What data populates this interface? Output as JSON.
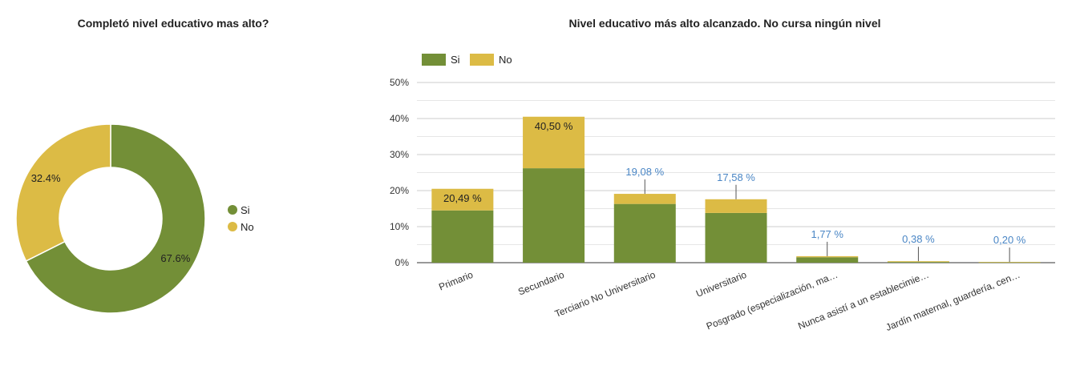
{
  "chart_data": [
    {
      "type": "pie",
      "title": "Completó nivel educativo mas alto?",
      "labels": [
        "Si",
        "No"
      ],
      "values": [
        67.6,
        32.4
      ],
      "value_labels": [
        "67.6%",
        "32.4%"
      ],
      "colors": [
        "#738f37",
        "#dcbb45"
      ],
      "donut": true,
      "legend": "right"
    },
    {
      "type": "bar",
      "stacked": true,
      "title": "Nivel educativo más alto alcanzado. No cursa ningún nivel",
      "categories": [
        "Primario",
        "Secundario",
        "Terciario No Universitario",
        "Universitario",
        "Posgrado (especialización, ma…",
        "Nunca asistí a un establecimie…",
        "Jardín maternal, guardería, cen…"
      ],
      "series": [
        {
          "name": "Si",
          "values": [
            14.5,
            26.2,
            16.3,
            13.8,
            1.5,
            0.2,
            0.1
          ],
          "color": "#738f37"
        },
        {
          "name": "No",
          "values": [
            6.0,
            14.3,
            2.8,
            3.8,
            0.3,
            0.2,
            0.1
          ],
          "color": "#dcbb45"
        }
      ],
      "total_labels": [
        "20,49 %",
        "40,50 %",
        "19,08 %",
        "17,58 %",
        "1,77 %",
        "0,38 %",
        "0,20 %"
      ],
      "y_ticks": [
        "0%",
        "10%",
        "20%",
        "30%",
        "40%",
        "50%"
      ],
      "ylim": [
        0,
        50
      ],
      "grid": true,
      "legend": "top-left"
    }
  ]
}
